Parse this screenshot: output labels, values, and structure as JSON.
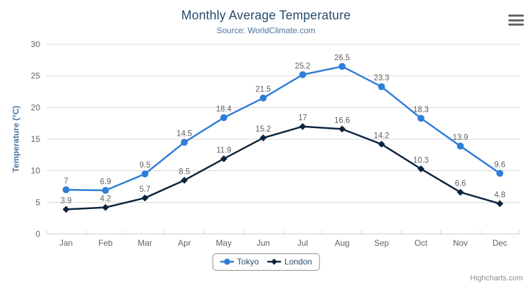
{
  "chart": {
    "credits": "Highcharts.com",
    "export_icon": "hamburger-menu-icon"
  },
  "chart_data": {
    "type": "line",
    "title": "Monthly Average Temperature",
    "subtitle": "Source: WorldClimate.com",
    "categories": [
      "Jan",
      "Feb",
      "Mar",
      "Apr",
      "May",
      "Jun",
      "Jul",
      "Aug",
      "Sep",
      "Oct",
      "Nov",
      "Dec"
    ],
    "series": [
      {
        "name": "Tokyo",
        "color": "#2f7ed8",
        "marker": "circle",
        "values": [
          7,
          6.9,
          9.5,
          14.5,
          18.4,
          21.5,
          25.2,
          26.5,
          23.3,
          18.3,
          13.9,
          9.6
        ]
      },
      {
        "name": "London",
        "color": "#0d233a",
        "marker": "diamond",
        "values": [
          3.9,
          4.2,
          5.7,
          8.5,
          11.9,
          15.2,
          17,
          16.6,
          14.2,
          10.3,
          6.6,
          4.8
        ]
      }
    ],
    "xlabel": "",
    "ylabel": "Temperature (°C)",
    "ylim": [
      0,
      30
    ],
    "ytick_interval": 5,
    "yticks": [
      0,
      5,
      10,
      15,
      20,
      25,
      30
    ],
    "grid": "horizontal",
    "legend_position": "bottom",
    "data_labels": true
  },
  "colors": {
    "title": "#274b6d",
    "subtitle": "#4d759e",
    "axis_title": "#4d759e",
    "tick_label": "#606060",
    "data_label": "#606060",
    "gridline": "#d8d8d8",
    "axis_line": "#c0d0e0",
    "legend_text": "#274b6d",
    "legend_border": "#909090",
    "credits": "#909090",
    "menu_icon": "#666666",
    "background": "#ffffff"
  }
}
